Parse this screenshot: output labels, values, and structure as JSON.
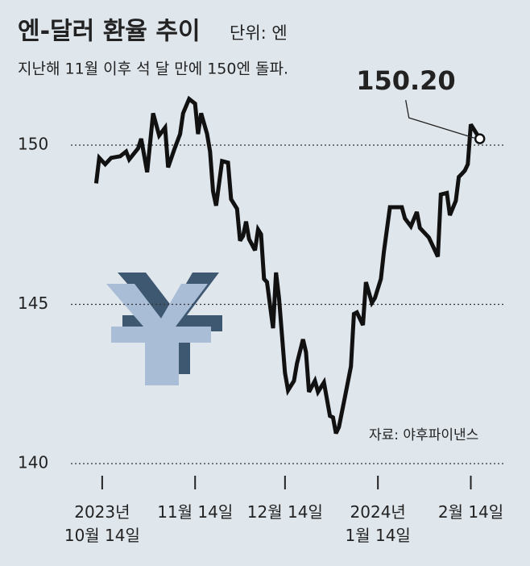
{
  "chart_data": {
    "type": "line",
    "title": "엔-달러 환율 추이",
    "unit": "단위: 엔",
    "subtitle": "지난해 11월 이후 석 달 만에  150엔 돌파.",
    "source": "자료: 야후파이낸스",
    "x": [
      "2023-10-12",
      "2023-10-13",
      "2023-10-15",
      "2023-10-17",
      "2023-10-20",
      "2023-10-22",
      "2023-10-23",
      "2023-10-26",
      "2023-10-27",
      "2023-10-29",
      "2023-10-31",
      "2023-11-02",
      "2023-11-04",
      "2023-11-05",
      "2023-11-07",
      "2023-11-09",
      "2023-11-10",
      "2023-11-12",
      "2023-11-14",
      "2023-11-15",
      "2023-11-16",
      "2023-11-18",
      "2023-11-19",
      "2023-11-20",
      "2023-11-21",
      "2023-11-23",
      "2023-11-25",
      "2023-11-26",
      "2023-11-28",
      "2023-11-29",
      "2023-11-30",
      "2023-12-01",
      "2023-12-02",
      "2023-12-04",
      "2023-12-05",
      "2023-12-06",
      "2023-12-07",
      "2023-12-08",
      "2023-12-10",
      "2023-12-11",
      "2023-12-12",
      "2023-12-14",
      "2023-12-15",
      "2023-12-17",
      "2023-12-18",
      "2023-12-20",
      "2023-12-21",
      "2023-12-22",
      "2023-12-24",
      "2023-12-25",
      "2023-12-27",
      "2023-12-29",
      "2023-12-30",
      "2023-12-31",
      "2024-01-01",
      "2024-01-03",
      "2024-01-05",
      "2024-01-06",
      "2024-01-07",
      "2024-01-09",
      "2024-01-10",
      "2024-01-12",
      "2024-01-13",
      "2024-01-15",
      "2024-01-16",
      "2024-01-18",
      "2024-01-20",
      "2024-01-22",
      "2024-01-23",
      "2024-01-25",
      "2024-01-27",
      "2024-01-28",
      "2024-01-30",
      "2024-01-31",
      "2024-02-02",
      "2024-02-03",
      "2024-02-04",
      "2024-02-06",
      "2024-02-07",
      "2024-02-09",
      "2024-02-10",
      "2024-02-11",
      "2024-02-12",
      "2024-02-13",
      "2024-02-14",
      "2024-02-17"
    ],
    "series": [
      {
        "color": "#111111",
        "values": [
          148.8,
          149.6,
          149.4,
          149.6,
          149.65,
          149.8,
          149.55,
          149.9,
          150.2,
          149.15,
          151.0,
          150.3,
          150.55,
          149.3,
          149.85,
          150.35,
          151.0,
          151.45,
          151.3,
          150.35,
          151.0,
          150.35,
          149.8,
          148.55,
          148.1,
          149.5,
          149.45,
          148.3,
          148.0,
          147.0,
          147.15,
          147.6,
          147.05,
          146.7,
          147.35,
          147.2,
          145.8,
          145.7,
          144.25,
          146.0,
          145.2,
          142.85,
          142.3,
          142.6,
          143.15,
          143.9,
          143.5,
          142.25,
          142.6,
          142.25,
          142.55,
          141.5,
          141.45,
          140.95,
          141.15,
          142.1,
          143.05,
          144.7,
          144.75,
          144.35,
          145.7,
          145.05,
          145.2,
          145.8,
          146.65,
          148.05,
          148.05,
          148.05,
          147.7,
          147.45,
          147.9,
          147.4,
          147.2,
          147.1,
          146.7,
          146.5,
          148.45,
          148.5,
          147.8,
          148.25,
          149.0,
          149.1,
          149.2,
          149.4,
          150.65,
          150.2
        ],
        "value_labels": [
          null,
          null,
          null,
          null,
          null,
          null,
          null,
          null,
          null,
          null,
          null,
          null,
          null,
          null,
          null,
          null,
          null,
          null,
          null,
          null,
          null,
          null,
          null,
          null,
          null,
          null,
          null,
          null,
          null,
          null,
          null,
          null,
          null,
          null,
          null,
          null,
          null,
          null,
          null,
          null,
          null,
          null,
          null,
          null,
          null,
          null,
          null,
          null,
          null,
          null,
          null,
          null,
          null,
          null,
          null,
          null,
          null,
          null,
          null,
          null,
          null,
          null,
          null,
          null,
          null,
          null,
          null,
          null,
          null,
          null,
          null,
          null,
          null,
          null,
          null,
          null,
          null,
          null,
          null,
          null,
          null,
          null,
          null,
          null,
          null,
          "150.20"
        ]
      }
    ],
    "xlim": [
      "2023-10-10",
      "2024-02-18"
    ],
    "xticks": [
      {
        "value": "2023-10-14",
        "label": "2023년\n10월 14일"
      },
      {
        "value": "2023-11-14",
        "label": "11월 14일"
      },
      {
        "value": "2023-12-14",
        "label": "12월 14일"
      },
      {
        "value": "2024-01-14",
        "label": "2024년\n1월 14일"
      },
      {
        "value": "2024-02-14",
        "label": "2월 14일"
      }
    ],
    "ylim": [
      140,
      152
    ],
    "yticks": [
      140,
      145,
      150
    ],
    "grid": true
  }
}
